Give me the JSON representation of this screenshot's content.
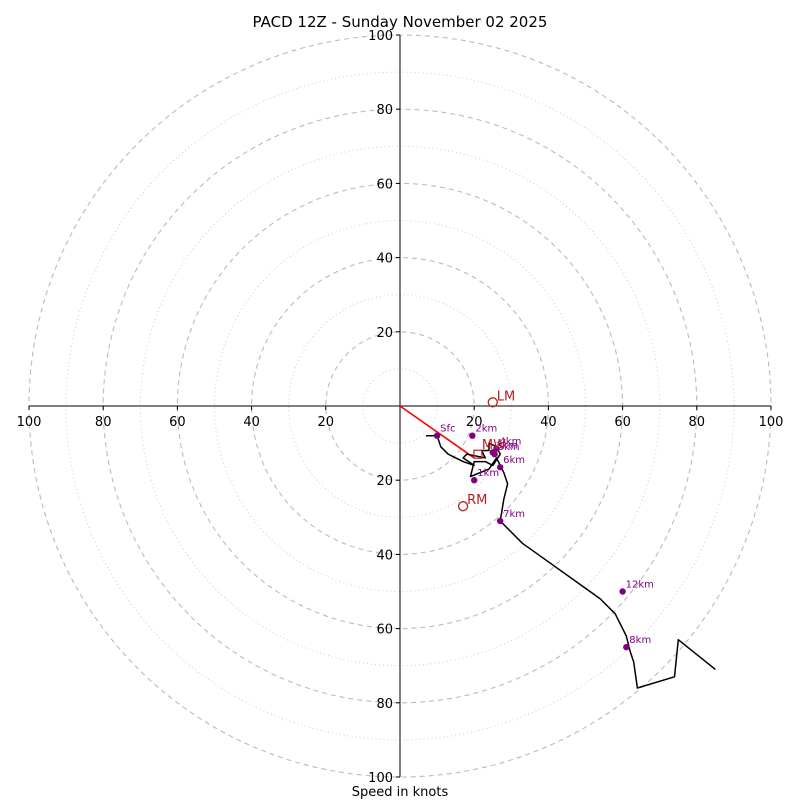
{
  "chart_data": {
    "type": "hodograph",
    "title": "PACD 12Z - Sunday November 02 2025",
    "xlabel": "Speed in knots",
    "units": "knots",
    "axis_range": [
      -100,
      100
    ],
    "ring_major": [
      20,
      40,
      60,
      80,
      100
    ],
    "ring_minor": [
      10,
      30,
      50,
      70,
      90
    ],
    "x_ticks": [
      {
        "value": -100,
        "label": "100"
      },
      {
        "value": -80,
        "label": "80"
      },
      {
        "value": -60,
        "label": "60"
      },
      {
        "value": -40,
        "label": "40"
      },
      {
        "value": -20,
        "label": "20"
      },
      {
        "value": 20,
        "label": "20"
      },
      {
        "value": 40,
        "label": "40"
      },
      {
        "value": 60,
        "label": "60"
      },
      {
        "value": 80,
        "label": "80"
      },
      {
        "value": 100,
        "label": "100"
      }
    ],
    "y_ticks_top": [
      {
        "value": 20,
        "label": "20"
      },
      {
        "value": 40,
        "label": "40"
      },
      {
        "value": 60,
        "label": "60"
      },
      {
        "value": 80,
        "label": "80"
      },
      {
        "value": 100,
        "label": "100"
      }
    ],
    "y_ticks_bottom": [
      {
        "value": -20,
        "label": "20"
      },
      {
        "value": -40,
        "label": "40"
      },
      {
        "value": -60,
        "label": "60"
      },
      {
        "value": -80,
        "label": "80"
      },
      {
        "value": -100,
        "label": "100"
      }
    ],
    "hodograph_trace": [
      [
        7,
        -8
      ],
      [
        10,
        -8
      ],
      [
        11,
        -11
      ],
      [
        13,
        -13
      ],
      [
        17,
        -15
      ],
      [
        20,
        -16
      ],
      [
        17,
        -14
      ],
      [
        18,
        -13
      ],
      [
        23,
        -14
      ],
      [
        22,
        -12
      ],
      [
        24,
        -12
      ],
      [
        24,
        -10
      ],
      [
        26,
        -11
      ],
      [
        27,
        -13
      ],
      [
        25,
        -16
      ],
      [
        23,
        -15
      ],
      [
        20,
        -15
      ],
      [
        19,
        -19
      ],
      [
        24,
        -17
      ],
      [
        26,
        -14
      ],
      [
        28,
        -18
      ],
      [
        29,
        -21
      ],
      [
        28,
        -25
      ],
      [
        27,
        -31
      ],
      [
        33,
        -37
      ],
      [
        40,
        -42
      ],
      [
        47,
        -47
      ],
      [
        54,
        -52
      ],
      [
        58,
        -56
      ],
      [
        59,
        -58
      ],
      [
        61,
        -62
      ],
      [
        62,
        -66
      ],
      [
        63,
        -69
      ],
      [
        64,
        -76
      ],
      [
        74,
        -73
      ],
      [
        75,
        -63
      ],
      [
        80,
        -67
      ],
      [
        85,
        -71
      ]
    ],
    "height_markers": [
      {
        "label": "Sfc",
        "u": 10,
        "v": -8
      },
      {
        "label": "1km",
        "u": 20,
        "v": -20
      },
      {
        "label": "2km",
        "u": 19.5,
        "v": -8
      },
      {
        "label": "3km",
        "u": 25,
        "v": -12.5
      },
      {
        "label": "4km",
        "u": 26,
        "v": -11.5
      },
      {
        "label": "5km",
        "u": 25.5,
        "v": -13
      },
      {
        "label": "6km",
        "u": 27,
        "v": -16.5
      },
      {
        "label": "7km",
        "u": 27,
        "v": -31
      },
      {
        "label": "8km",
        "u": 61,
        "v": -65
      },
      {
        "label": "12km",
        "u": 60,
        "v": -50
      }
    ],
    "storm_motion_vector": {
      "from": [
        0,
        0
      ],
      "to": [
        20,
        -14
      ]
    },
    "storm_markers": [
      {
        "label": "LM",
        "u": 25,
        "v": 1
      },
      {
        "label": "RM",
        "u": 17,
        "v": -27
      },
      {
        "label": "MW",
        "u": 21,
        "v": -13
      }
    ],
    "colors": {
      "trace": "#000000",
      "height_marker": "#800080",
      "storm": "#b22222",
      "vector": "#ff0000",
      "ring": "#bbbbbb"
    }
  }
}
